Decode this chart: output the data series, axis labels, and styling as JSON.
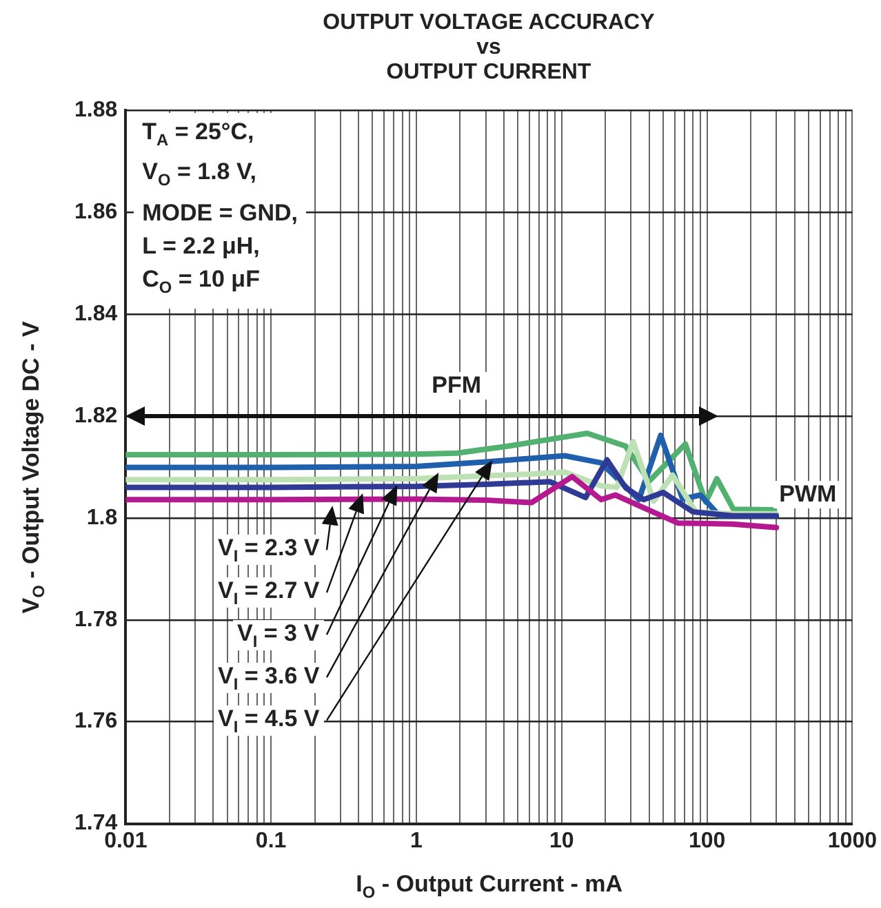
{
  "chart_data": {
    "type": "line",
    "title": "OUTPUT VOLTAGE ACCURACY\nvs\nOUTPUT CURRENT",
    "xlabel": "I$_{O}$ - Output Current - mA",
    "ylabel": "V$_{O}$ - Output Voltage DC - V",
    "log": "x",
    "grid": true,
    "legend": false,
    "marker": "none",
    "line_style": "solid",
    "xlim": [
      0.01,
      1000
    ],
    "xticks": [
      0.01,
      {
        "value": 0.02,
        "label": null
      },
      {
        "value": 0.03,
        "label": null
      },
      {
        "value": 0.04,
        "label": null
      },
      {
        "value": 0.05,
        "label": null
      },
      {
        "value": 0.06,
        "label": null
      },
      {
        "value": 0.07,
        "label": null
      },
      {
        "value": 0.08,
        "label": null
      },
      {
        "value": 0.09,
        "label": null
      },
      0.1,
      {
        "value": 0.2,
        "label": null
      },
      {
        "value": 0.3,
        "label": null
      },
      {
        "value": 0.4,
        "label": null
      },
      {
        "value": 0.5,
        "label": null
      },
      {
        "value": 0.6,
        "label": null
      },
      {
        "value": 0.7,
        "label": null
      },
      {
        "value": 0.8,
        "label": null
      },
      {
        "value": 0.9,
        "label": null
      },
      1,
      {
        "value": 2,
        "label": null
      },
      {
        "value": 3,
        "label": null
      },
      {
        "value": 4,
        "label": null
      },
      {
        "value": 5,
        "label": null
      },
      {
        "value": 6,
        "label": null
      },
      {
        "value": 7,
        "label": null
      },
      {
        "value": 8,
        "label": null
      },
      {
        "value": 9,
        "label": null
      },
      10,
      {
        "value": 20,
        "label": null
      },
      {
        "value": 30,
        "label": null
      },
      {
        "value": 40,
        "label": null
      },
      {
        "value": 50,
        "label": null
      },
      {
        "value": 60,
        "label": null
      },
      {
        "value": 70,
        "label": null
      },
      {
        "value": 80,
        "label": null
      },
      {
        "value": 90,
        "label": null
      },
      100,
      {
        "value": 200,
        "label": null
      },
      {
        "value": 300,
        "label": null
      },
      {
        "value": 400,
        "label": null
      },
      {
        "value": 500,
        "label": null
      },
      {
        "value": 600,
        "label": null
      },
      {
        "value": 700,
        "label": null
      },
      {
        "value": 800,
        "label": null
      },
      {
        "value": 900,
        "label": null
      },
      1000
    ],
    "ylim": [
      1.74,
      1.88
    ],
    "yticks": [
      1.74,
      1.76,
      1.78,
      1.8,
      1.82,
      1.84,
      1.86,
      1.88
    ],
    "series": [
      {
        "name": "V$_{I}$ = 2.3 V",
        "color": "#b5198f",
        "x": [
          0.01,
          0.1,
          1,
          3,
          6.2,
          11.8,
          18.7,
          23.4,
          40,
          63,
          150,
          300
        ],
        "values": [
          1.8036,
          1.8036,
          1.8037,
          1.8035,
          1.803,
          1.8081,
          1.8036,
          1.8045,
          1.8015,
          1.799,
          1.7988,
          1.7981
        ]
      },
      {
        "name": "V$_{I}$ = 2.7 V",
        "color": "#2e3a94",
        "x": [
          0.01,
          0.1,
          1,
          3,
          8.3,
          14.6,
          20.5,
          27.6,
          36.6,
          50,
          80,
          150,
          300
        ],
        "values": [
          1.806,
          1.806,
          1.8062,
          1.8066,
          1.8071,
          1.804,
          1.8114,
          1.8059,
          1.8036,
          1.805,
          1.8012,
          1.8004,
          1.8004
        ]
      },
      {
        "name": "V$_{I}$ = 3 V",
        "color": "#bde0b5",
        "x": [
          0.01,
          0.1,
          1,
          6,
          10.5,
          18.7,
          24,
          31,
          43,
          58,
          84,
          150,
          300
        ],
        "values": [
          1.8075,
          1.8075,
          1.8077,
          1.8086,
          1.809,
          1.8063,
          1.806,
          1.815,
          1.8033,
          1.8084,
          1.8011,
          1.8008,
          1.8008
        ]
      },
      {
        "name": "V$_{I}$ = 3.6 V",
        "color": "#1f5fab",
        "x": [
          0.01,
          0.1,
          1,
          3,
          10.5,
          18.7,
          34,
          48,
          68,
          90,
          122,
          300
        ],
        "values": [
          1.8099,
          1.8099,
          1.8101,
          1.811,
          1.8122,
          1.8108,
          1.8036,
          1.8162,
          1.8037,
          1.8045,
          1.8004,
          1.8004
        ]
      },
      {
        "name": "V$_{I}$ = 4.5 V",
        "color": "#52b070",
        "x": [
          0.01,
          0.1,
          1,
          1.9,
          4.3,
          15,
          27.5,
          40,
          71,
          98,
          117,
          152,
          290
        ],
        "values": [
          1.8124,
          1.8124,
          1.8125,
          1.8127,
          1.8141,
          1.8166,
          1.8141,
          1.8072,
          1.8145,
          1.8031,
          1.8077,
          1.8017,
          1.8016
        ]
      }
    ],
    "annotations": [
      "PFM",
      "PWM",
      "T$_{A}$ = 25°C,",
      "V$_{O}$ = 1.8 V,",
      "MODE = GND,",
      "L = 2.2 μH,",
      "C$_{O}$ = 10 μF"
    ]
  }
}
